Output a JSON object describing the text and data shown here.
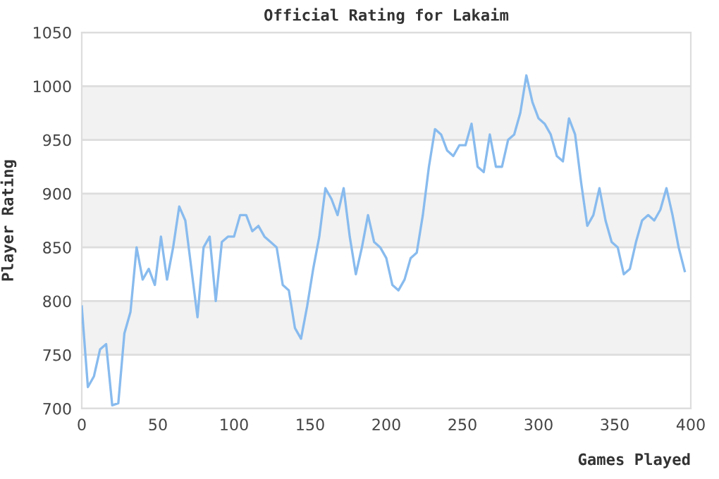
{
  "chart_data": {
    "type": "line",
    "title": "Official Rating for Lakaim",
    "xlabel": "Games Played",
    "ylabel": "Player Rating",
    "x": [
      0,
      4,
      8,
      12,
      16,
      20,
      24,
      28,
      32,
      36,
      40,
      44,
      48,
      52,
      56,
      60,
      64,
      68,
      72,
      76,
      80,
      84,
      88,
      92,
      96,
      100,
      104,
      108,
      112,
      116,
      120,
      124,
      128,
      132,
      136,
      140,
      144,
      148,
      152,
      156,
      160,
      164,
      168,
      172,
      176,
      180,
      184,
      188,
      192,
      196,
      200,
      204,
      208,
      212,
      216,
      220,
      224,
      228,
      232,
      236,
      240,
      244,
      248,
      252,
      256,
      260,
      264,
      268,
      272,
      276,
      280,
      284,
      288,
      292,
      296,
      300,
      304,
      308,
      312,
      316,
      320,
      324,
      328,
      332,
      336,
      340,
      344,
      348,
      352,
      356,
      360,
      364,
      368,
      372,
      376,
      380,
      384,
      388,
      392,
      396
    ],
    "series": [
      {
        "color": "#88bbee",
        "values": [
          795,
          720,
          730,
          755,
          760,
          703,
          705,
          770,
          790,
          850,
          820,
          830,
          815,
          860,
          820,
          850,
          888,
          875,
          830,
          785,
          850,
          860,
          800,
          855,
          860,
          860,
          880,
          880,
          865,
          870,
          860,
          855,
          850,
          815,
          810,
          775,
          765,
          795,
          830,
          860,
          905,
          895,
          880,
          905,
          860,
          825,
          850,
          880,
          855,
          850,
          840,
          815,
          810,
          820,
          840,
          845,
          880,
          925,
          960,
          955,
          940,
          935,
          945,
          945,
          965,
          925,
          920,
          955,
          925,
          925,
          950,
          955,
          975,
          1010,
          985,
          970,
          965,
          955,
          935,
          930,
          970,
          955,
          910,
          870,
          880,
          905,
          875,
          855,
          850,
          825,
          830,
          855,
          875,
          880,
          875,
          885,
          905,
          880,
          850,
          828
        ]
      }
    ],
    "xlim": [
      0,
      400
    ],
    "xticks": [
      0,
      50,
      100,
      150,
      200,
      250,
      300,
      350,
      400
    ],
    "ylim": [
      700,
      1050
    ],
    "yticks": [
      700,
      750,
      800,
      850,
      900,
      950,
      1000,
      1050
    ],
    "grid": "y",
    "marker": "none",
    "line_style": "solid"
  }
}
